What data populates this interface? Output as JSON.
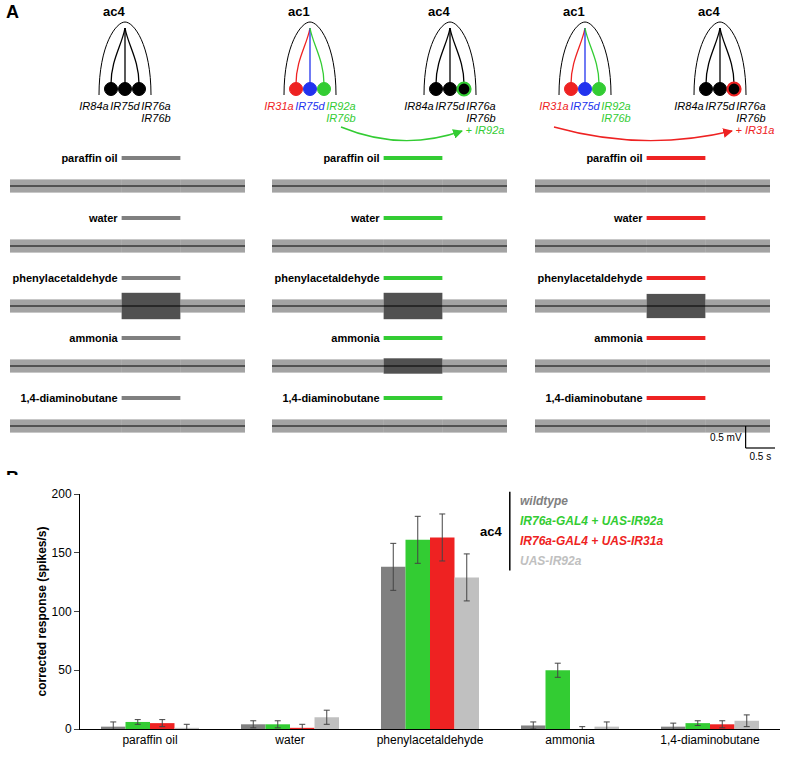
{
  "panel_a": {
    "label": "A",
    "trace_s": 4,
    "stimulus_s": [
      1.9,
      2.9
    ],
    "scale_bar": {
      "voltage_mV": 0.5,
      "voltage_label": "0.5 mV",
      "time_s": 0.5,
      "time_label": "0.5 s"
    },
    "columns": [
      {
        "color": "#808080",
        "sensilla": [
          {
            "name": "ac4",
            "neurons": [
              {
                "labels": [
                  "IR84a"
                ],
                "color": "#000000",
                "label_color": "#000000"
              },
              {
                "labels": [
                  "IR75d"
                ],
                "color": "#000000",
                "label_color": "#000000"
              },
              {
                "labels": [
                  "IR76a",
                  "IR76b"
                ],
                "color": "#000000",
                "label_color": "#000000"
              }
            ]
          }
        ],
        "traces": [
          {
            "odor": "paraffin oil",
            "envelope_mV": [
              0.3,
              0.3,
              0.3
            ]
          },
          {
            "odor": "water",
            "envelope_mV": [
              0.3,
              0.3,
              0.3
            ]
          },
          {
            "odor": "phenylacetaldehyde",
            "envelope_mV": [
              0.3,
              0.6,
              0.3
            ]
          },
          {
            "odor": "ammonia",
            "envelope_mV": [
              0.3,
              0.3,
              0.3
            ]
          },
          {
            "odor": "1,4-diaminobutane",
            "envelope_mV": [
              0.3,
              0.3,
              0.3
            ]
          }
        ]
      },
      {
        "color": "#33cc33",
        "sensilla": [
          {
            "name": "ac1",
            "neurons": [
              {
                "labels": [
                  "IR31a"
                ],
                "color": "#ee2222",
                "label_color": "#ee2222"
              },
              {
                "labels": [
                  "IR75d"
                ],
                "color": "#2233ee",
                "label_color": "#2233ee"
              },
              {
                "labels": [
                  "IR92a",
                  "IR76b"
                ],
                "color": "#33cc33",
                "label_color": "#33cc33"
              }
            ]
          },
          {
            "name": "ac4",
            "neurons": [
              {
                "labels": [
                  "IR84a"
                ],
                "color": "#000000",
                "label_color": "#000000"
              },
              {
                "labels": [
                  "IR75d"
                ],
                "color": "#000000",
                "label_color": "#000000"
              },
              {
                "labels": [
                  "IR76a",
                  "IR76b"
                ],
                "color": "#000000",
                "label_color": "#000000",
                "outline": "#33cc33"
              }
            ],
            "added": "+ IR92a"
          }
        ],
        "arrow": {
          "from_neuron": 2
        },
        "traces": [
          {
            "odor": "paraffin oil",
            "envelope_mV": [
              0.3,
              0.3,
              0.3
            ]
          },
          {
            "odor": "water",
            "envelope_mV": [
              0.3,
              0.3,
              0.3
            ]
          },
          {
            "odor": "phenylacetaldehyde",
            "envelope_mV": [
              0.3,
              0.6,
              0.3
            ]
          },
          {
            "odor": "ammonia",
            "envelope_mV": [
              0.3,
              0.35,
              0.3
            ]
          },
          {
            "odor": "1,4-diaminobutane",
            "envelope_mV": [
              0.3,
              0.3,
              0.3
            ]
          }
        ]
      },
      {
        "color": "#ee2222",
        "sensilla": [
          {
            "name": "ac1",
            "neurons": [
              {
                "labels": [
                  "IR31a"
                ],
                "color": "#ee2222",
                "label_color": "#ee2222"
              },
              {
                "labels": [
                  "IR75d"
                ],
                "color": "#2233ee",
                "label_color": "#2233ee"
              },
              {
                "labels": [
                  "IR92a",
                  "IR76b"
                ],
                "color": "#33cc33",
                "label_color": "#33cc33"
              }
            ]
          },
          {
            "name": "ac4",
            "neurons": [
              {
                "labels": [
                  "IR84a"
                ],
                "color": "#000000",
                "label_color": "#000000"
              },
              {
                "labels": [
                  "IR75d"
                ],
                "color": "#000000",
                "label_color": "#000000"
              },
              {
                "labels": [
                  "IR76a",
                  "IR76b"
                ],
                "color": "#000000",
                "label_color": "#000000",
                "outline": "#ee2222"
              }
            ],
            "added": "+ IR31a"
          }
        ],
        "arrow": {
          "from_neuron": 0
        },
        "traces": [
          {
            "odor": "paraffin oil",
            "envelope_mV": [
              0.3,
              0.3,
              0.3
            ]
          },
          {
            "odor": "water",
            "envelope_mV": [
              0.3,
              0.3,
              0.3
            ]
          },
          {
            "odor": "phenylacetaldehyde",
            "envelope_mV": [
              0.3,
              0.55,
              0.3
            ]
          },
          {
            "odor": "ammonia",
            "envelope_mV": [
              0.3,
              0.3,
              0.3
            ]
          },
          {
            "odor": "1,4-diaminobutane",
            "envelope_mV": [
              0.3,
              0.3,
              0.3
            ]
          }
        ]
      }
    ]
  },
  "chart_data": {
    "type": "bar",
    "panel_label": "B",
    "y_label": "corrected response (spikes/s)",
    "categories": [
      "paraffin oil",
      "water",
      "phenylacetaldehyde",
      "ammonia",
      "1,4-diaminobutane"
    ],
    "legend_title": "ac4",
    "series": [
      {
        "name": "wildtype",
        "color": "#808080",
        "values": [
          2,
          4,
          138,
          3,
          2
        ],
        "errors": [
          4,
          3,
          20,
          3,
          3
        ]
      },
      {
        "name": "IR76a-GAL4 + UAS-IR92a",
        "color": "#33cc33",
        "values": [
          6,
          4,
          161,
          50,
          5
        ],
        "errors": [
          2,
          3,
          20,
          6,
          2
        ]
      },
      {
        "name": "IR76a-GAL4 + UAS-IR31a",
        "color": "#ee2222",
        "values": [
          5,
          1,
          163,
          0,
          4
        ],
        "errors": [
          3,
          3,
          20,
          2,
          3
        ]
      },
      {
        "name": "UAS-IR92a",
        "color": "#c0c0c0",
        "values": [
          1,
          10,
          129,
          2,
          7
        ],
        "errors": [
          3,
          6,
          20,
          4,
          5
        ]
      }
    ],
    "ylim": [
      0,
      200
    ],
    "yticks": [
      0,
      50,
      100,
      150,
      200
    ],
    "grid": false
  }
}
